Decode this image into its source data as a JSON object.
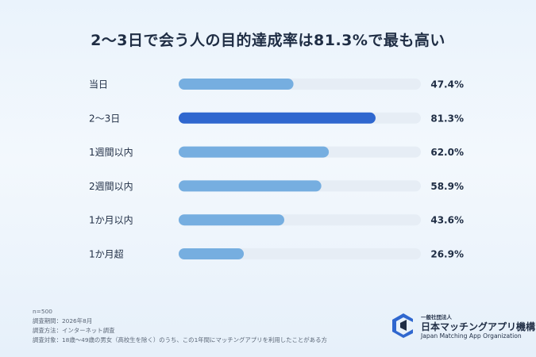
{
  "chart_data": {
    "type": "bar",
    "orientation": "horizontal",
    "title": "2〜3日で会う人の目的達成率は81.3%で最も高い",
    "categories": [
      "当日",
      "2〜3日",
      "1週間以内",
      "2週間以内",
      "1か月以内",
      "1か月超"
    ],
    "values": [
      47.4,
      81.3,
      62.0,
      58.9,
      43.6,
      26.9
    ],
    "value_labels": [
      "47.4%",
      "81.3%",
      "62.0%",
      "58.9%",
      "43.6%",
      "26.9%"
    ],
    "highlight_index": 1,
    "xlim": [
      0,
      100
    ],
    "grid": false,
    "legend": "none",
    "colors": {
      "bar": "#76aee0",
      "highlight": "#2f67cf",
      "track": "#e6edf5"
    }
  },
  "footnotes": {
    "n": "n=500",
    "period": "調査期間：2026年8月",
    "method": "調査方法：インターネット調査",
    "target": "調査対象：18歳〜49歳の男女（高校生を除く）のうち、この1年間にマッチングアプリを利用したことがある方"
  },
  "logo": {
    "kind": "一般社団法人",
    "name": "日本マッチングアプリ機構",
    "name_en": "Japan Matching App Organization",
    "icon": "org-logo-icon",
    "color": "#2f67cf"
  }
}
